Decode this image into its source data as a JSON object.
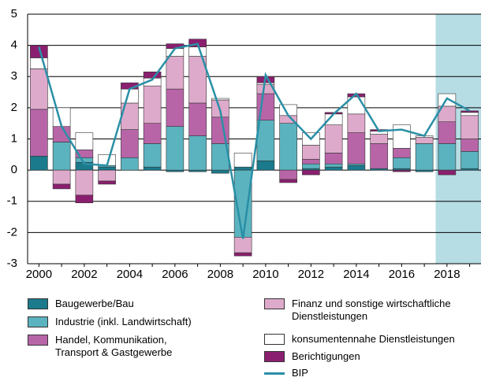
{
  "chart_data": {
    "type": "bar",
    "stacked": true,
    "categories": [
      "2000",
      null,
      "2002",
      null,
      "2004",
      null,
      "2006",
      null,
      "2008",
      null,
      "2010",
      null,
      "2012",
      null,
      "2014",
      null,
      "2016",
      null,
      "2018",
      null
    ],
    "ylim": [
      -3,
      5
    ],
    "yticks": [
      -3,
      -2,
      -1,
      0,
      1,
      2,
      3,
      4,
      5
    ],
    "grid": true,
    "series": [
      {
        "name": "Baugewerbe/Bau",
        "color": "#1b7a8c",
        "values": [
          0.45,
          0,
          0.25,
          0.1,
          0,
          0.1,
          -0.05,
          -0.05,
          -0.1,
          0.1,
          0.3,
          0,
          0.05,
          0.1,
          0.15,
          0.05,
          0.05,
          -0.05,
          0,
          0.05
        ]
      },
      {
        "name": "Industrie (inkl. Landwirtschaft)",
        "color": "#5bb3bf",
        "values": [
          0,
          0.9,
          0.15,
          0.05,
          0.4,
          0.75,
          1.4,
          1.1,
          0.85,
          -2.15,
          1.3,
          1.5,
          0.15,
          0.1,
          0.05,
          0,
          0.35,
          0.85,
          0.85,
          0.55
        ]
      },
      {
        "name": "Handel, Kommunikation,\nTransport & Gastgewerbe",
        "color": "#b865a8",
        "values": [
          1.5,
          0.5,
          0.25,
          0,
          0.9,
          0.65,
          1.2,
          1.05,
          0.85,
          0,
          0.85,
          -0.3,
          0.15,
          0.35,
          1.0,
          0.8,
          0.3,
          0,
          0.7,
          0.4
        ]
      },
      {
        "name": "Finanz und sonstige wirtschaftliche\nDienstleistungen",
        "color": "#deaacb",
        "values": [
          1.3,
          -0.45,
          -0.8,
          -0.35,
          0.85,
          1.2,
          1.05,
          1.5,
          0.55,
          -0.5,
          0.3,
          0.25,
          0.45,
          0.9,
          0.6,
          0.3,
          0,
          0.2,
          0.5,
          0.75
        ]
      },
      {
        "name": "konsumentennahe Dienstleistungen",
        "color": "#ffffff",
        "values": [
          0.35,
          0.6,
          0.55,
          0.35,
          0.45,
          0.25,
          0.25,
          0.3,
          0.05,
          0.45,
          0.05,
          0.35,
          0.4,
          0.35,
          0.55,
          0.1,
          0.75,
          0.05,
          0.4,
          0.1
        ]
      },
      {
        "name": "Berichtigungen",
        "color": "#8b1f6f",
        "values": [
          0.4,
          -0.15,
          -0.25,
          -0.1,
          0.2,
          0.2,
          0.15,
          0.25,
          0,
          -0.1,
          0.2,
          -0.1,
          -0.15,
          0.05,
          0.1,
          0.05,
          -0.05,
          0,
          -0.15,
          0.05
        ]
      }
    ],
    "line": {
      "name": "BIP",
      "color": "#2a8fa6",
      "values": [
        3.95,
        1.4,
        0.2,
        0.15,
        2.6,
        2.9,
        3.9,
        4.05,
        1.9,
        -2.2,
        3.05,
        1.75,
        1.0,
        1.8,
        2.45,
        1.25,
        1.3,
        1.1,
        2.3,
        1.9
      ]
    }
  }
}
